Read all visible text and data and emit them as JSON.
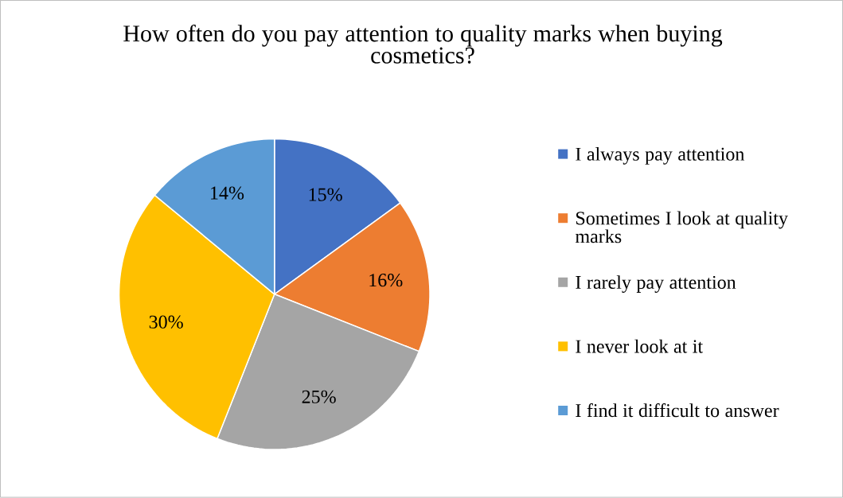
{
  "chart_data": {
    "type": "pie",
    "title": "How often do you pay attention to quality marks when buying cosmetics?",
    "categories": [
      "I always pay attention",
      "Sometimes I look at quality marks",
      "I rarely pay attention",
      "I never look at it",
      "I find it difficult to answer"
    ],
    "values": [
      15,
      16,
      25,
      30,
      14
    ],
    "value_labels": [
      "15%",
      "16%",
      "25%",
      "30%",
      "14%"
    ],
    "colors": [
      "#4472c4",
      "#ed7d31",
      "#a5a5a5",
      "#ffc000",
      "#5b9bd5"
    ],
    "legend": "right"
  }
}
